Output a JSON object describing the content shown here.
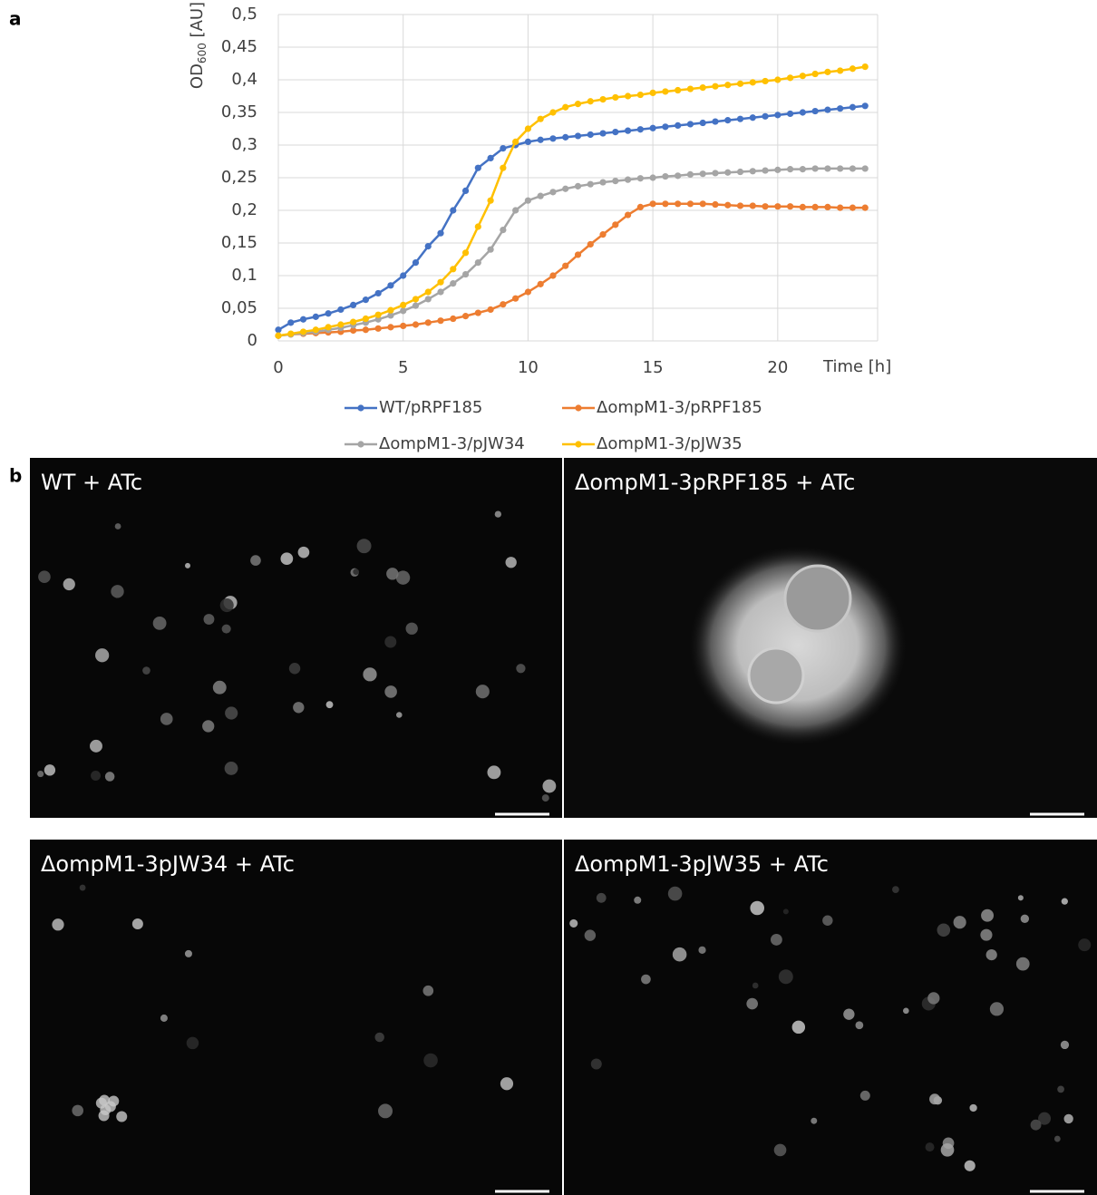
{
  "panel_labels": [
    "a",
    "b"
  ],
  "chart_data": {
    "type": "line",
    "ylabel": [
      "OD",
      "600",
      " [AU]"
    ],
    "xlabel": "Time [h]",
    "xlim": [
      0,
      24
    ],
    "xticks": [
      0,
      5,
      10,
      15,
      20
    ],
    "ylim": [
      0,
      0.5
    ],
    "yticks": [
      0,
      {
        "value": 0.05,
        "label": "0,05"
      },
      {
        "value": 0.1,
        "label": "0,1"
      },
      {
        "value": 0.15,
        "label": "0,15"
      },
      {
        "value": 0.2,
        "label": "0,2"
      },
      {
        "value": 0.25,
        "label": "0,25"
      },
      {
        "value": 0.3,
        "label": "0,3"
      },
      {
        "value": 0.35,
        "label": "0,35"
      },
      {
        "value": 0.4,
        "label": "0,4"
      },
      {
        "value": 0.45,
        "label": "0,45"
      },
      {
        "value": 0.5,
        "label": "0,5"
      }
    ],
    "grid": true,
    "legend": "bottom",
    "x": [
      0,
      0.5,
      1,
      1.5,
      2,
      2.5,
      3,
      3.5,
      4,
      4.5,
      5,
      5.5,
      6,
      6.5,
      7,
      7.5,
      8,
      8.5,
      9,
      9.5,
      10,
      10.5,
      11,
      11.5,
      12,
      12.5,
      13,
      13.5,
      14,
      14.5,
      15,
      15.5,
      16,
      16.5,
      17,
      17.5,
      18,
      18.5,
      19,
      19.5,
      20,
      20.5,
      21,
      21.5,
      22,
      22.5,
      23,
      23.5
    ],
    "series": [
      {
        "name": "WT/pRPF185",
        "color": "#4472c4",
        "values": [
          0.017,
          0.028,
          0.033,
          0.037,
          0.042,
          0.048,
          0.055,
          0.063,
          0.073,
          0.085,
          0.1,
          0.12,
          0.145,
          0.165,
          0.2,
          0.23,
          0.265,
          0.28,
          0.295,
          0.3,
          0.305,
          0.308,
          0.31,
          0.312,
          0.314,
          0.316,
          0.318,
          0.32,
          0.322,
          0.324,
          0.326,
          0.328,
          0.33,
          0.332,
          0.334,
          0.336,
          0.338,
          0.34,
          0.342,
          0.344,
          0.346,
          0.348,
          0.35,
          0.352,
          0.354,
          0.356,
          0.358,
          0.36
        ]
      },
      {
        "name": "ΔompM1-3/pRPF185",
        "color": "#ed7d31",
        "values": [
          0.008,
          0.01,
          0.011,
          0.012,
          0.013,
          0.014,
          0.016,
          0.017,
          0.019,
          0.021,
          0.023,
          0.025,
          0.028,
          0.031,
          0.034,
          0.038,
          0.043,
          0.048,
          0.056,
          0.065,
          0.075,
          0.087,
          0.1,
          0.115,
          0.132,
          0.148,
          0.163,
          0.178,
          0.193,
          0.205,
          0.21,
          0.21,
          0.21,
          0.21,
          0.21,
          0.209,
          0.208,
          0.207,
          0.207,
          0.206,
          0.206,
          0.206,
          0.205,
          0.205,
          0.205,
          0.204,
          0.204,
          0.204
        ]
      },
      {
        "name": "ΔompM1-3/pJW34",
        "color": "#a5a5a5",
        "values": [
          0.008,
          0.01,
          0.012,
          0.014,
          0.017,
          0.02,
          0.024,
          0.028,
          0.033,
          0.039,
          0.046,
          0.054,
          0.064,
          0.075,
          0.088,
          0.102,
          0.12,
          0.14,
          0.17,
          0.2,
          0.215,
          0.222,
          0.228,
          0.233,
          0.237,
          0.24,
          0.243,
          0.245,
          0.247,
          0.249,
          0.25,
          0.252,
          0.253,
          0.255,
          0.256,
          0.257,
          0.258,
          0.259,
          0.26,
          0.261,
          0.262,
          0.263,
          0.263,
          0.264,
          0.264,
          0.264,
          0.264,
          0.264
        ]
      },
      {
        "name": "ΔompM1-3/pJW35",
        "color": "#ffc000",
        "values": [
          0.008,
          0.011,
          0.014,
          0.017,
          0.021,
          0.025,
          0.029,
          0.034,
          0.04,
          0.047,
          0.055,
          0.064,
          0.075,
          0.09,
          0.11,
          0.135,
          0.175,
          0.215,
          0.265,
          0.305,
          0.325,
          0.34,
          0.35,
          0.358,
          0.363,
          0.367,
          0.37,
          0.373,
          0.375,
          0.377,
          0.38,
          0.382,
          0.384,
          0.386,
          0.388,
          0.39,
          0.392,
          0.394,
          0.396,
          0.398,
          0.4,
          0.403,
          0.406,
          0.409,
          0.412,
          0.414,
          0.417,
          0.42
        ]
      }
    ]
  },
  "images": [
    {
      "label": "WT + ATc"
    },
    {
      "label": "ΔompM1-3pRPF185 + ATc"
    },
    {
      "label": "ΔompM1-3pJW34 + ATc"
    },
    {
      "label": "ΔompM1-3pJW35 + ATc"
    }
  ]
}
